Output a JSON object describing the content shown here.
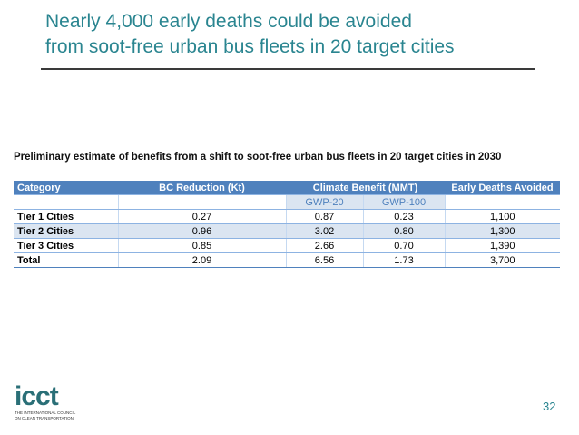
{
  "header": {
    "title_lines": [
      "Nearly 4,000 early deaths could be avoided",
      "from soot-free urban bus fleets in 20 target cities"
    ]
  },
  "table": {
    "caption": "Preliminary estimate of benefits from a shift to soot-free urban bus fleets in 20 target cities in 2030",
    "columns": [
      "Category",
      "BC Reduction (Kt)",
      "Climate Benefit (MMT)",
      "Early Deaths Avoided"
    ],
    "subcolumns": [
      "GWP-20",
      "GWP-100"
    ],
    "rows": [
      [
        "Tier 1 Cities",
        "0.27",
        "0.87",
        "0.23",
        "1,100"
      ],
      [
        "Tier 2  Cities",
        "0.96",
        "3.02",
        "0.80",
        "1,300"
      ],
      [
        "Tier 3 Cities",
        "0.85",
        "2.66",
        "0.70",
        "1,390"
      ],
      [
        "Total",
        "2.09",
        "6.56",
        "1.73",
        "3,700"
      ]
    ]
  },
  "footer": {
    "logo": "icct",
    "logo_tagline": "THE INTERNATIONAL COUNCIL ON CLEAN TRANSPORTATION",
    "page_number": "32"
  }
}
